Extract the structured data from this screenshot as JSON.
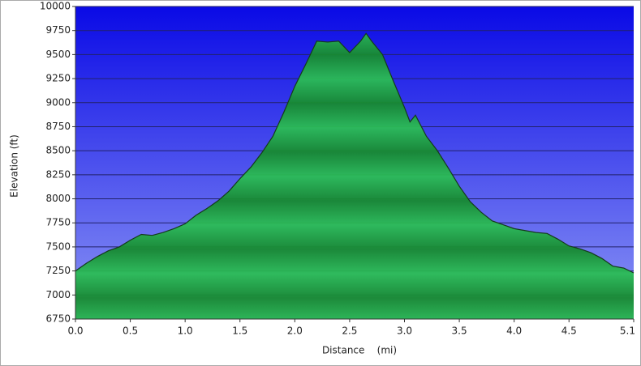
{
  "chart_data": {
    "type": "area",
    "x_label": "Distance    (mi)",
    "y_label": "Elevation (ft)",
    "x": [
      0.0,
      0.1,
      0.2,
      0.3,
      0.4,
      0.5,
      0.6,
      0.7,
      0.8,
      0.9,
      1.0,
      1.1,
      1.2,
      1.3,
      1.4,
      1.5,
      1.6,
      1.7,
      1.8,
      1.9,
      2.0,
      2.1,
      2.2,
      2.3,
      2.4,
      2.5,
      2.6,
      2.65,
      2.7,
      2.8,
      2.9,
      3.0,
      3.05,
      3.1,
      3.2,
      3.3,
      3.4,
      3.5,
      3.6,
      3.7,
      3.8,
      3.9,
      4.0,
      4.1,
      4.2,
      4.3,
      4.4,
      4.5,
      4.6,
      4.7,
      4.8,
      4.9,
      5.0,
      5.09
    ],
    "series": [
      {
        "color": "#1fa040",
        "values": [
          7250,
          7330,
          7400,
          7460,
          7500,
          7570,
          7630,
          7620,
          7650,
          7690,
          7740,
          7830,
          7900,
          7980,
          8080,
          8210,
          8330,
          8480,
          8650,
          8900,
          9170,
          9400,
          9640,
          9630,
          9640,
          9520,
          9640,
          9720,
          9640,
          9500,
          9220,
          8950,
          8800,
          8870,
          8650,
          8500,
          8320,
          8130,
          7970,
          7860,
          7770,
          7730,
          7690,
          7670,
          7650,
          7640,
          7580,
          7510,
          7480,
          7440,
          7380,
          7300,
          7280,
          7230
        ]
      }
    ],
    "xlim": [
      0,
      5.09
    ],
    "ylim": [
      6750,
      10000
    ],
    "xticks": [
      {
        "value": 0,
        "label": "0.0"
      },
      0.5,
      {
        "value": 1,
        "label": "1.0"
      },
      1.5,
      {
        "value": 2,
        "label": "2.0"
      },
      2.5,
      {
        "value": 3,
        "label": "3.0"
      },
      3.5,
      {
        "value": 4,
        "label": "4.0"
      },
      4.5,
      {
        "value": 5.09,
        "label": "5.1"
      }
    ],
    "yticks": [
      6750,
      7000,
      7250,
      7500,
      7750,
      8000,
      8250,
      8500,
      8750,
      9000,
      9250,
      9500,
      9750,
      10000
    ],
    "grid": true
  }
}
